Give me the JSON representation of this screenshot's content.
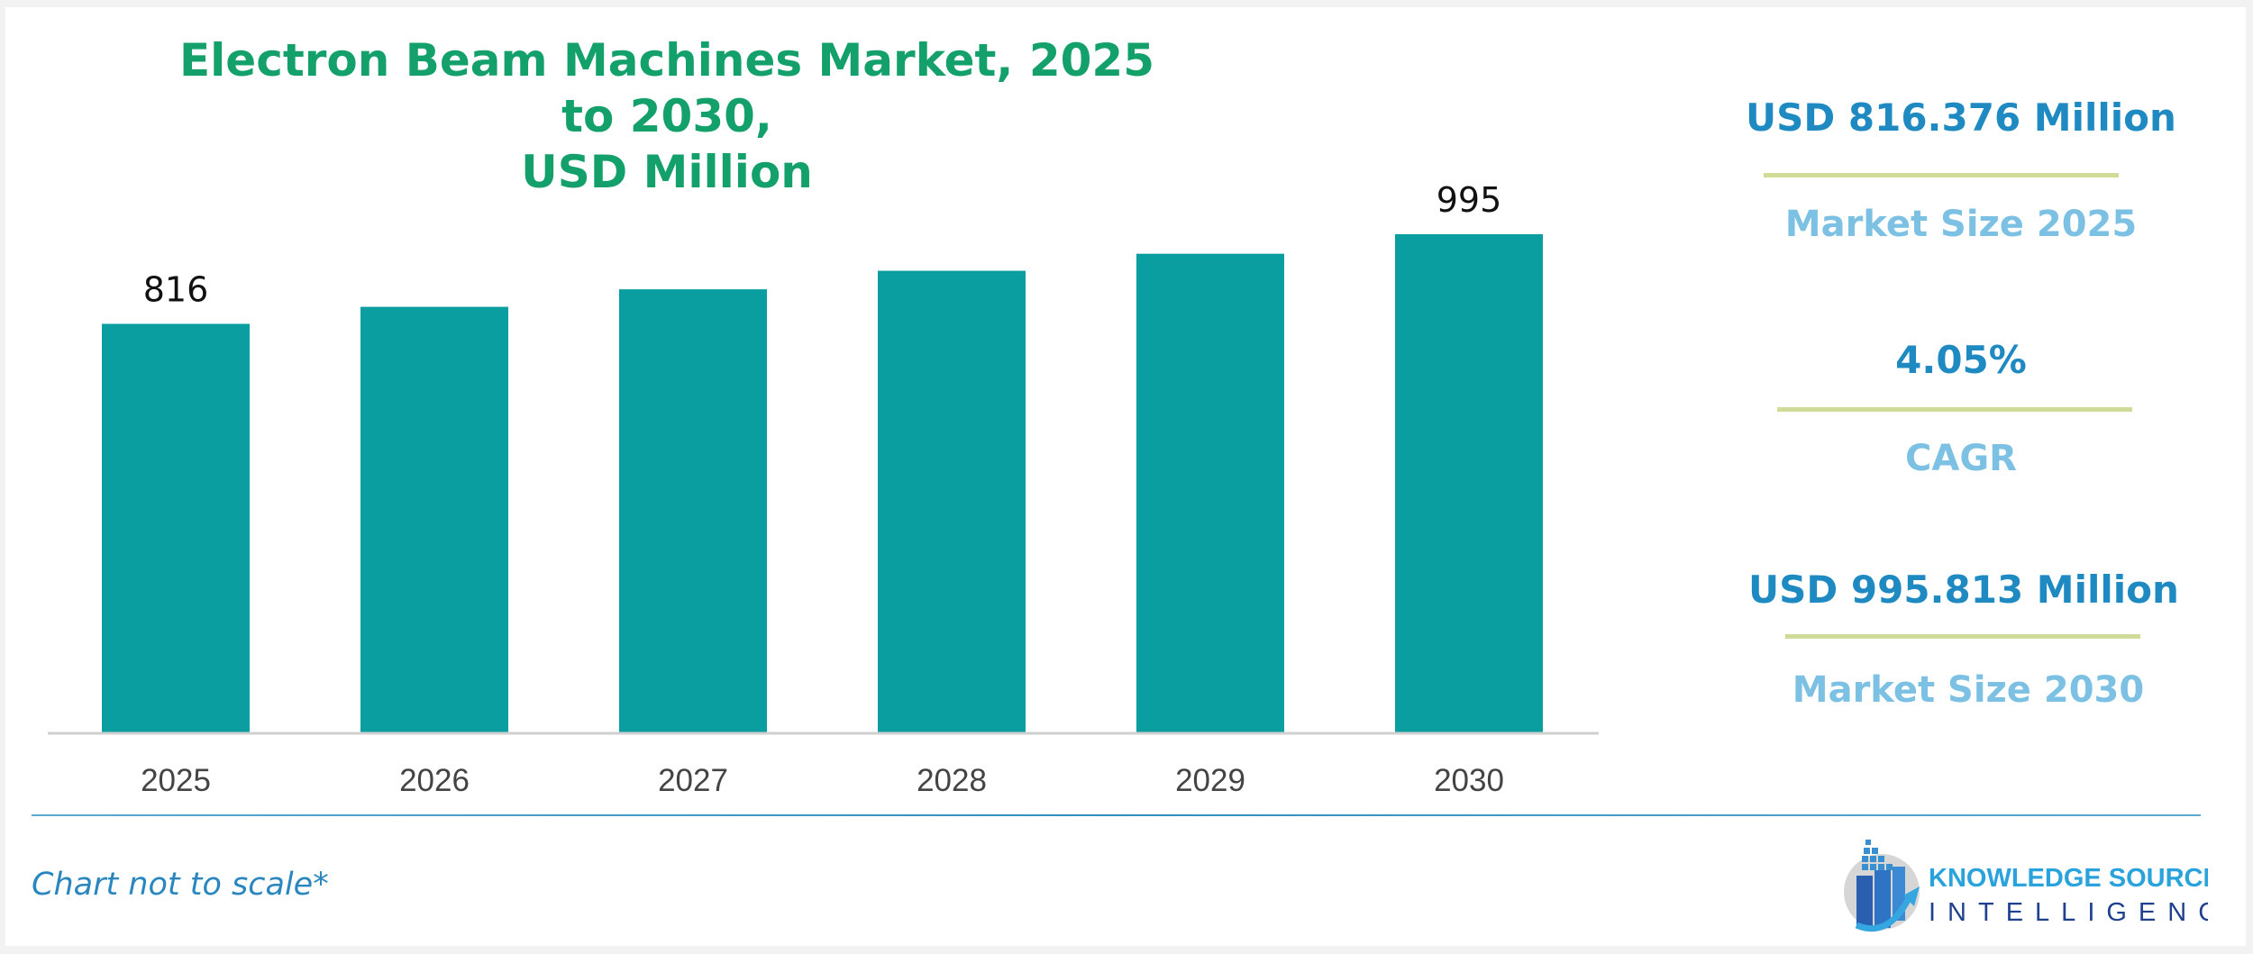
{
  "chart_data": {
    "type": "bar",
    "title": "Electron Beam Machines Market, 2025 to 2030, USD Million",
    "title_lines": [
      "Electron Beam Machines Market, 2025 to 2030,",
      "USD Million"
    ],
    "categories": [
      "2025",
      "2026",
      "2027",
      "2028",
      "2029",
      "2030"
    ],
    "values": [
      816,
      850,
      885,
      922,
      956,
      995
    ],
    "data_labels": {
      "0": "816",
      "5": "995"
    },
    "ylim": [
      0,
      995
    ],
    "grid": false,
    "bar_color": "#0a9ea0",
    "title_color": "#13a06b"
  },
  "side_panel": {
    "items": [
      {
        "value": "USD 816.376 Million",
        "label": "Market Size 2025"
      },
      {
        "value": "4.05%",
        "label": "CAGR"
      },
      {
        "value": "USD 995.813 Million",
        "label": "Market Size 2030"
      }
    ],
    "value_color": "#1f8ac2",
    "label_color": "#7cc1e4",
    "divider_color": "#cfdc98"
  },
  "footnote": "Chart not to scale*",
  "logo": {
    "line1": "KNOWLEDGE SOURCING",
    "line2": "INTELLIGENCE"
  }
}
